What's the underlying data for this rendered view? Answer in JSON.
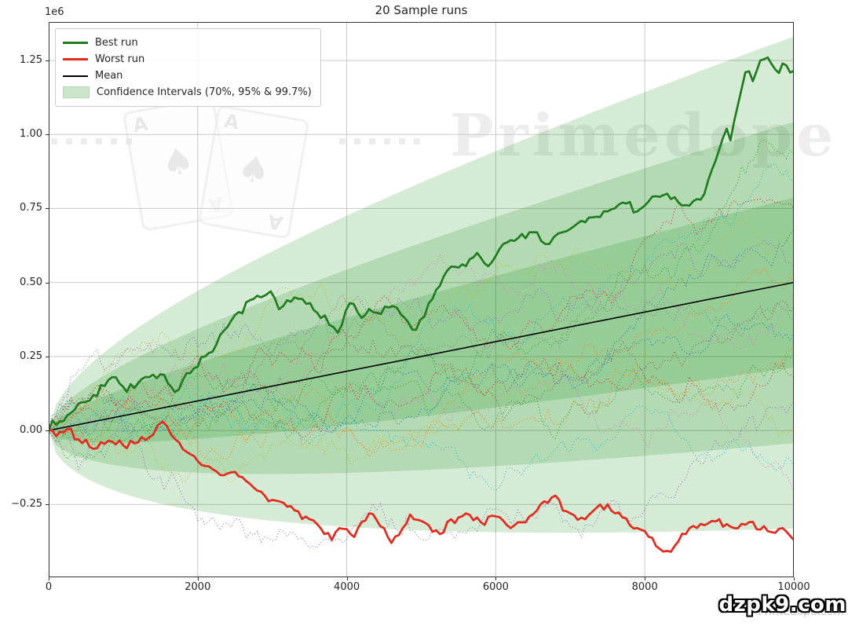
{
  "figure": {
    "title": "20 Sample runs",
    "y_offset_label": "1e6",
    "background": "#ffffff"
  },
  "legend": {
    "position": "upper left",
    "items": [
      {
        "label": "Best run",
        "swatch": "line",
        "color": "#1f7d1f",
        "thickness": 3
      },
      {
        "label": "Worst run",
        "swatch": "line",
        "color": "#e4291d",
        "thickness": 3
      },
      {
        "label": "Mean",
        "swatch": "line",
        "color": "#000000",
        "thickness": 2
      },
      {
        "label": "Confidence Intervals (70%, 95% & 99.7%)",
        "swatch": "patch",
        "color": "rgba(0,128,0,0.2)"
      }
    ]
  },
  "watermarks": {
    "brand_text": "Primedope",
    "card_rank": "A",
    "card_suit": "♠",
    "dots_per_group": 6,
    "badge_text": "dzpk9.com",
    "badge_backdrop_text": "Primedope.com"
  },
  "chart_data": {
    "type": "line",
    "title": "20 Sample runs",
    "xlabel": "",
    "ylabel": "",
    "y_offset_label": "1e6",
    "xlim": [
      0,
      10000
    ],
    "ylim": [
      -496000,
      1380000
    ],
    "grid": true,
    "grid_color": "#c9c9c9",
    "spine_color": "#333333",
    "x_ticks": [
      0,
      2000,
      4000,
      6000,
      8000,
      10000
    ],
    "x_tick_labels": [
      "0",
      "2000",
      "4000",
      "6000",
      "8000",
      "10000"
    ],
    "y_tick_values": [
      -250000,
      0,
      250000,
      500000,
      750000,
      1000000,
      1250000
    ],
    "y_tick_labels": [
      "−0.25",
      "0.00",
      "0.25",
      "0.50",
      "0.75",
      "1.00",
      "1.25"
    ],
    "legend_position": "upper left",
    "mean_line": {
      "name": "Mean",
      "color": "#000000",
      "width": 1.6,
      "points": [
        [
          0,
          0
        ],
        [
          10000,
          500000
        ]
      ]
    },
    "confidence_bands": {
      "name": "Confidence Intervals (70%, 95% & 99.7%)",
      "mean_slope_per_trial": 50,
      "stddev_per_trial": 2770,
      "levels": [
        {
          "label": "99.7%",
          "z": 3.0
        },
        {
          "label": "95%",
          "z": 1.96
        },
        {
          "label": "70%",
          "z": 1.036
        }
      ],
      "fill_color": "#008000",
      "fill_opacity": 0.16
    },
    "best_run": {
      "name": "Best run",
      "color": "#1f7d1f",
      "width": 2.7,
      "noise_seed": 7,
      "anchor_points": [
        [
          0,
          0
        ],
        [
          150,
          30000
        ],
        [
          300,
          60000
        ],
        [
          450,
          95000
        ],
        [
          600,
          120000
        ],
        [
          750,
          150000
        ],
        [
          900,
          180000
        ],
        [
          1050,
          130000
        ],
        [
          1200,
          160000
        ],
        [
          1350,
          180000
        ],
        [
          1500,
          190000
        ],
        [
          1600,
          160000
        ],
        [
          1690,
          130000
        ],
        [
          1800,
          170000
        ],
        [
          1950,
          210000
        ],
        [
          2100,
          250000
        ],
        [
          2250,
          290000
        ],
        [
          2400,
          350000
        ],
        [
          2550,
          400000
        ],
        [
          2700,
          440000
        ],
        [
          2850,
          450000
        ],
        [
          2980,
          470000
        ],
        [
          3090,
          410000
        ],
        [
          3200,
          440000
        ],
        [
          3350,
          445000
        ],
        [
          3510,
          430000
        ],
        [
          3650,
          380000
        ],
        [
          3880,
          330000
        ],
        [
          4040,
          430000
        ],
        [
          4200,
          380000
        ],
        [
          4350,
          400000
        ],
        [
          4620,
          420000
        ],
        [
          4780,
          380000
        ],
        [
          4930,
          340000
        ],
        [
          5100,
          430000
        ],
        [
          5300,
          520000
        ],
        [
          5500,
          550000
        ],
        [
          5750,
          600000
        ],
        [
          5900,
          555000
        ],
        [
          6100,
          630000
        ],
        [
          6300,
          650000
        ],
        [
          6500,
          670000
        ],
        [
          6720,
          630000
        ],
        [
          6900,
          670000
        ],
        [
          7100,
          700000
        ],
        [
          7300,
          720000
        ],
        [
          7500,
          740000
        ],
        [
          7700,
          770000
        ],
        [
          7900,
          740000
        ],
        [
          8100,
          790000
        ],
        [
          8300,
          800000
        ],
        [
          8500,
          760000
        ],
        [
          8750,
          780000
        ],
        [
          8900,
          880000
        ],
        [
          9000,
          950000
        ],
        [
          9100,
          1020000
        ],
        [
          9150,
          980000
        ],
        [
          9250,
          1100000
        ],
        [
          9350,
          1210000
        ],
        [
          9450,
          1180000
        ],
        [
          9550,
          1250000
        ],
        [
          9650,
          1260000
        ],
        [
          9750,
          1220000
        ],
        [
          9850,
          1240000
        ],
        [
          10000,
          1215000
        ]
      ]
    },
    "worst_run": {
      "name": "Worst run",
      "color": "#e4291d",
      "width": 2.7,
      "noise_seed": 9,
      "anchor_points": [
        [
          0,
          0
        ],
        [
          100,
          -20000
        ],
        [
          250,
          5000
        ],
        [
          400,
          -30000
        ],
        [
          600,
          -62000
        ],
        [
          800,
          -35000
        ],
        [
          1000,
          -50000
        ],
        [
          1200,
          -40000
        ],
        [
          1400,
          -15000
        ],
        [
          1530,
          30000
        ],
        [
          1700,
          -30000
        ],
        [
          1900,
          -80000
        ],
        [
          2100,
          -120000
        ],
        [
          2300,
          -150000
        ],
        [
          2500,
          -140000
        ],
        [
          2700,
          -180000
        ],
        [
          2900,
          -220000
        ],
        [
          3100,
          -240000
        ],
        [
          3300,
          -270000
        ],
        [
          3500,
          -300000
        ],
        [
          3700,
          -350000
        ],
        [
          3800,
          -370000
        ],
        [
          3900,
          -330000
        ],
        [
          4100,
          -360000
        ],
        [
          4300,
          -280000
        ],
        [
          4500,
          -330000
        ],
        [
          4600,
          -380000
        ],
        [
          4750,
          -330000
        ],
        [
          4900,
          -300000
        ],
        [
          5100,
          -320000
        ],
        [
          5250,
          -350000
        ],
        [
          5400,
          -300000
        ],
        [
          5600,
          -280000
        ],
        [
          5800,
          -310000
        ],
        [
          6000,
          -290000
        ],
        [
          6200,
          -330000
        ],
        [
          6400,
          -310000
        ],
        [
          6600,
          -250000
        ],
        [
          6800,
          -220000
        ],
        [
          7000,
          -280000
        ],
        [
          7200,
          -300000
        ],
        [
          7400,
          -250000
        ],
        [
          7600,
          -280000
        ],
        [
          7800,
          -320000
        ],
        [
          8000,
          -340000
        ],
        [
          8200,
          -400000
        ],
        [
          8350,
          -410000
        ],
        [
          8600,
          -330000
        ],
        [
          8800,
          -320000
        ],
        [
          9000,
          -300000
        ],
        [
          9200,
          -330000
        ],
        [
          9400,
          -310000
        ],
        [
          9650,
          -340000
        ],
        [
          9850,
          -330000
        ],
        [
          10000,
          -370000
        ]
      ]
    },
    "sample_runs": {
      "count": 18,
      "style": "dotted",
      "line_width": 1.1,
      "steps": 200,
      "colors": [
        "#2ca02c",
        "#17becf",
        "#d62728",
        "#1f77b4",
        "#bcbd22",
        "#9467bd",
        "#ff7f0e",
        "#e377c2",
        "#8c564b",
        "#7f7f7f",
        "#1f77b4",
        "#ff7f0e",
        "#2ca02c",
        "#d62728",
        "#9467bd",
        "#bcbd22",
        "#17becf",
        "#e377c2"
      ],
      "seeds": [
        11,
        22,
        33,
        44,
        55,
        66,
        77,
        88,
        99,
        110,
        121,
        132,
        143,
        154,
        165,
        176,
        187,
        198
      ],
      "end_values": [
        930000,
        850000,
        750000,
        680000,
        620000,
        550000,
        500000,
        460000,
        420000,
        380000,
        330000,
        280000,
        240000,
        180000,
        100000,
        20000,
        -120000,
        -200000
      ]
    }
  }
}
